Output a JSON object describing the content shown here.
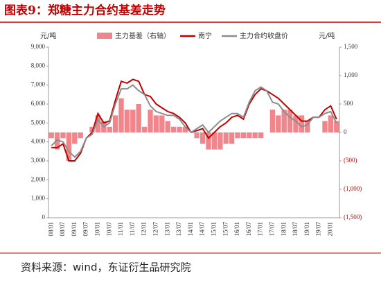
{
  "title": "图表9：郑糖主力合约基差走势",
  "source": "资料来源：wind，东证衍生品研究院",
  "chart_data": {
    "type": "bar-line",
    "y_unit": "元/吨",
    "y2_unit": "元/吨",
    "categories": [
      "08/01",
      null,
      "08/07",
      null,
      "09/01",
      null,
      "09/07",
      null,
      "10/01",
      null,
      "10/07",
      null,
      "11/01",
      null,
      "11/07",
      null,
      "12/01",
      null,
      "12/07",
      null,
      "13/01",
      null,
      "13/07",
      null,
      "14/01",
      null,
      "14/07",
      null,
      "15/01",
      null,
      "15/07",
      null,
      "16/01",
      null,
      "16/07",
      null,
      "17/01",
      null,
      "17/07",
      null,
      "18/01",
      null,
      "18/07",
      null,
      "19/01",
      null,
      "19/07",
      null,
      "20/01",
      null
    ],
    "series": [
      {
        "name": "主力基差（右轴）",
        "color": "#f0868c",
        "kind": "bar",
        "axis": "y2",
        "values": [
          -100,
          -300,
          -100,
          -500,
          -200,
          -100,
          0,
          100,
          300,
          200,
          100,
          300,
          600,
          400,
          400,
          500,
          100,
          400,
          300,
          300,
          200,
          100,
          100,
          100,
          0,
          -100,
          -200,
          -300,
          -300,
          -300,
          -200,
          -200,
          -100,
          -100,
          -100,
          -100,
          -100,
          0,
          400,
          300,
          400,
          400,
          300,
          300,
          200,
          0,
          0,
          200,
          300,
          200
        ]
      },
      {
        "name": "南宁",
        "color": "#c00000",
        "kind": "line",
        "axis": "y",
        "values": [
          3700,
          3700,
          3900,
          3000,
          3000,
          3400,
          4200,
          4500,
          5500,
          5000,
          5100,
          6200,
          7200,
          7100,
          7300,
          7200,
          6500,
          6400,
          6000,
          5800,
          5600,
          5500,
          5300,
          5000,
          4500,
          4600,
          4700,
          4200,
          4500,
          4800,
          5000,
          5300,
          5400,
          5200,
          6000,
          6500,
          6800,
          6700,
          6500,
          6300,
          6000,
          5700,
          5400,
          5100,
          5100,
          5300,
          5300,
          5700,
          5900,
          5200
        ]
      },
      {
        "name": "主力合约收盘价",
        "color": "#8c8c8c",
        "kind": "line",
        "axis": "y",
        "values": [
          3800,
          4100,
          4000,
          3500,
          3200,
          3500,
          4200,
          4400,
          5200,
          4800,
          5000,
          6000,
          6800,
          6800,
          7000,
          6700,
          6500,
          5900,
          5600,
          5500,
          5400,
          5400,
          5200,
          4800,
          4500,
          4700,
          4900,
          4500,
          4800,
          5100,
          5300,
          5500,
          5500,
          5300,
          6100,
          6700,
          6900,
          6700,
          6100,
          6000,
          5600,
          5300,
          5100,
          4800,
          4900,
          5300,
          5300,
          5500,
          5600,
          5000
        ]
      }
    ],
    "ylim": [
      0,
      9000
    ],
    "yticks": [
      0,
      {
        "value": 1000,
        "label": "1,000"
      },
      {
        "value": 2000,
        "label": "2,000"
      },
      {
        "value": 3000,
        "label": "3,000"
      },
      {
        "value": 4000,
        "label": "4,000"
      },
      {
        "value": 5000,
        "label": "5,000"
      },
      {
        "value": 6000,
        "label": "6,000"
      },
      {
        "value": 7000,
        "label": "7,000"
      },
      {
        "value": 8000,
        "label": "8,000"
      },
      {
        "value": 9000,
        "label": "9,000"
      }
    ],
    "y2lim": [
      -1500,
      1500
    ],
    "y2ticks": [
      {
        "value": -1500,
        "label": "(1,500)"
      },
      {
        "value": -1000,
        "label": "(1,000)"
      },
      {
        "value": -500,
        "label": "(500)"
      },
      0,
      500,
      {
        "value": 1000,
        "label": "1,000"
      },
      {
        "value": 1500,
        "label": "1,500"
      }
    ]
  }
}
